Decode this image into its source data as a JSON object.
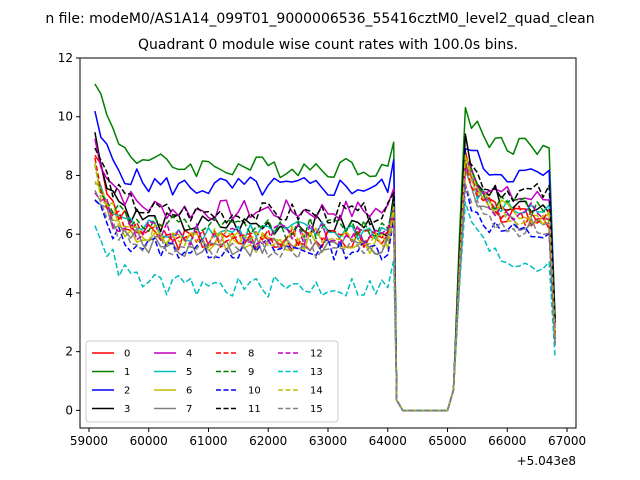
{
  "chart_data": {
    "type": "line",
    "suptitle": "n file: modeM0/AS1A14_099T01_9000006536_55416cztM0_level2_quad_clean",
    "title": "Quadrant 0 module wise count rates with 100.0s bins.",
    "xlabel": "",
    "ylabel": "",
    "xlim": [
      58850,
      67150
    ],
    "ylim": [
      -0.6,
      12.0
    ],
    "x_offset_label": "+5.043e8",
    "x_ticks": [
      59000,
      60000,
      61000,
      62000,
      63000,
      64000,
      65000,
      66000,
      67000
    ],
    "x_tick_labels": [
      "59000",
      "60000",
      "61000",
      "62000",
      "63000",
      "64000",
      "65000",
      "66000",
      "67000"
    ],
    "y_ticks": [
      0,
      2,
      4,
      6,
      8,
      10,
      12
    ],
    "y_tick_labels": [
      "0",
      "2",
      "4",
      "6",
      "8",
      "10",
      "12"
    ],
    "grid": false,
    "legend_position": "lower-left",
    "legend_columns": 4,
    "segments": [
      {
        "x_start": 59100,
        "x_step": 100,
        "count": 51
      },
      {
        "x_start": 65200,
        "x_step": 100,
        "count": 17
      }
    ],
    "gap_xs": [
      64150,
      64250,
      64400,
      64600,
      64800,
      65000,
      65100
    ],
    "series": [
      {
        "name": "0",
        "color": "#ff0000",
        "dash": "solid",
        "start": 8.9,
        "level": 5.8,
        "second_start": 8.5,
        "second_level": 6.5,
        "end": 2.6
      },
      {
        "name": "1",
        "color": "#008000",
        "dash": "solid",
        "start": 11.45,
        "level": 8.3,
        "second_start": 10.3,
        "second_level": 9.0,
        "end": 3.1
      },
      {
        "name": "2",
        "color": "#0000ff",
        "dash": "solid",
        "start": 9.9,
        "level": 7.6,
        "second_start": 9.2,
        "second_level": 8.0,
        "end": 3.0
      },
      {
        "name": "3",
        "color": "#000000",
        "dash": "solid",
        "start": 9.3,
        "level": 6.3,
        "second_start": 9.3,
        "second_level": 7.0,
        "end": 3.1
      },
      {
        "name": "4",
        "color": "#bf00bf",
        "dash": "solid",
        "start": 9.2,
        "level": 6.8,
        "second_start": 8.8,
        "second_level": 7.2,
        "end": 2.8
      },
      {
        "name": "5",
        "color": "#00bfbf",
        "dash": "solid",
        "start": 7.8,
        "level": 6.1,
        "second_start": 8.2,
        "second_level": 6.8,
        "end": 2.5
      },
      {
        "name": "6",
        "color": "#bfbf00",
        "dash": "solid",
        "start": 8.0,
        "level": 5.7,
        "second_start": 8.6,
        "second_level": 6.7,
        "end": 2.4
      },
      {
        "name": "7",
        "color": "#808080",
        "dash": "solid",
        "start": 7.5,
        "level": 5.6,
        "second_start": 7.9,
        "second_level": 6.4,
        "end": 2.2
      },
      {
        "name": "8",
        "color": "#ff0000",
        "dash": "dashed",
        "start": 8.3,
        "level": 5.9,
        "second_start": 8.4,
        "second_level": 6.6,
        "end": 2.5
      },
      {
        "name": "9",
        "color": "#008000",
        "dash": "dashed",
        "start": 8.2,
        "level": 6.2,
        "second_start": 8.7,
        "second_level": 6.9,
        "end": 2.6
      },
      {
        "name": "10",
        "color": "#0000ff",
        "dash": "dashed",
        "start": 7.1,
        "level": 5.5,
        "second_start": 7.6,
        "second_level": 6.0,
        "end": 2.3
      },
      {
        "name": "11",
        "color": "#000000",
        "dash": "dashed",
        "start": 9.0,
        "level": 6.7,
        "second_start": 8.8,
        "second_level": 7.4,
        "end": 3.0
      },
      {
        "name": "12",
        "color": "#bf00bf",
        "dash": "dashed",
        "start": 7.6,
        "level": 6.0,
        "second_start": 8.1,
        "second_level": 6.7,
        "end": 2.4
      },
      {
        "name": "13",
        "color": "#00bfbf",
        "dash": "dashed",
        "start": 6.6,
        "level": 4.2,
        "second_start": 7.2,
        "second_level": 5.0,
        "end": 1.8
      },
      {
        "name": "14",
        "color": "#bfbf00",
        "dash": "dashed",
        "start": 8.1,
        "level": 5.9,
        "second_start": 8.4,
        "second_level": 6.5,
        "end": 2.5
      },
      {
        "name": "15",
        "color": "#808080",
        "dash": "dashed",
        "start": 7.3,
        "level": 5.5,
        "second_start": 7.7,
        "second_level": 6.2,
        "end": 2.2
      }
    ]
  }
}
